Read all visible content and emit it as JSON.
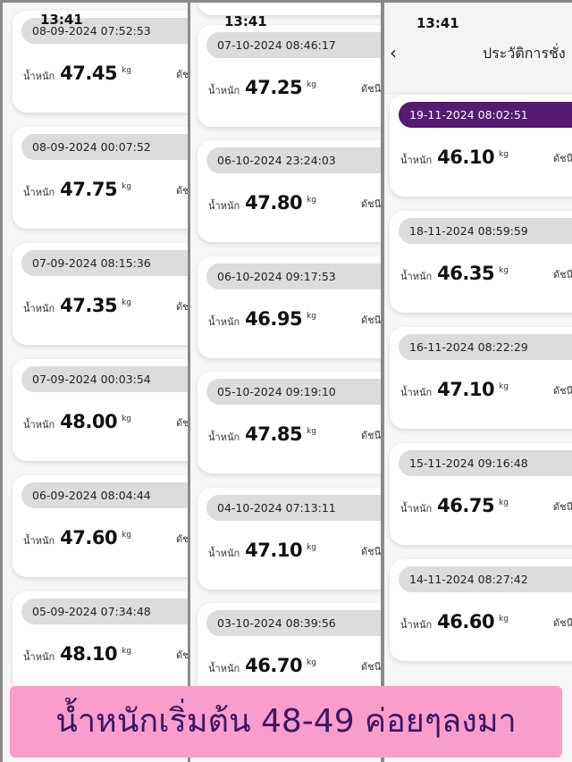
{
  "status_time": "13:41",
  "weight_label": "น้ำหนัก",
  "unit": "kg",
  "bmi_label": "ดัชนี",
  "header": {
    "title": "ประวัติการชั่ง",
    "back_icon": "chevron-left-icon"
  },
  "colors": {
    "active_pill": "#561a72",
    "pill": "#dcdcdc",
    "banner": "#f99dcb",
    "banner_text": "#3b1764"
  },
  "panels": [
    {
      "records": [
        {
          "date": "08-09-2024 07:52:53",
          "weight": "47.45"
        },
        {
          "date": "08-09-2024 00:07:52",
          "weight": "47.75"
        },
        {
          "date": "07-09-2024 08:15:36",
          "weight": "47.35"
        },
        {
          "date": "07-09-2024 00:03:54",
          "weight": "48.00"
        },
        {
          "date": "06-09-2024 08:04:44",
          "weight": "47.60"
        },
        {
          "date": "05-09-2024 07:34:48",
          "weight": "48.10"
        }
      ]
    },
    {
      "records": [
        {
          "date": "07-10-2024 08:46:17",
          "weight": "47.25"
        },
        {
          "date": "06-10-2024 23:24:03",
          "weight": "47.80"
        },
        {
          "date": "06-10-2024 09:17:53",
          "weight": "46.95"
        },
        {
          "date": "05-10-2024 09:19:10",
          "weight": "47.85"
        },
        {
          "date": "04-10-2024 07:13:11",
          "weight": "47.10"
        },
        {
          "date": "03-10-2024 08:39:56",
          "weight": "46.70"
        }
      ]
    },
    {
      "records": [
        {
          "date": "19-11-2024 08:02:51",
          "weight": "46.10"
        },
        {
          "date": "18-11-2024 08:59:59",
          "weight": "46.35"
        },
        {
          "date": "16-11-2024 08:22:29",
          "weight": "47.10"
        },
        {
          "date": "15-11-2024 09:16:48",
          "weight": "46.75"
        },
        {
          "date": "14-11-2024 08:27:42",
          "weight": "46.60"
        }
      ]
    }
  ],
  "banner": "น้ำหนักเริ่มต้น 48-49 ค่อยๆลงมา"
}
